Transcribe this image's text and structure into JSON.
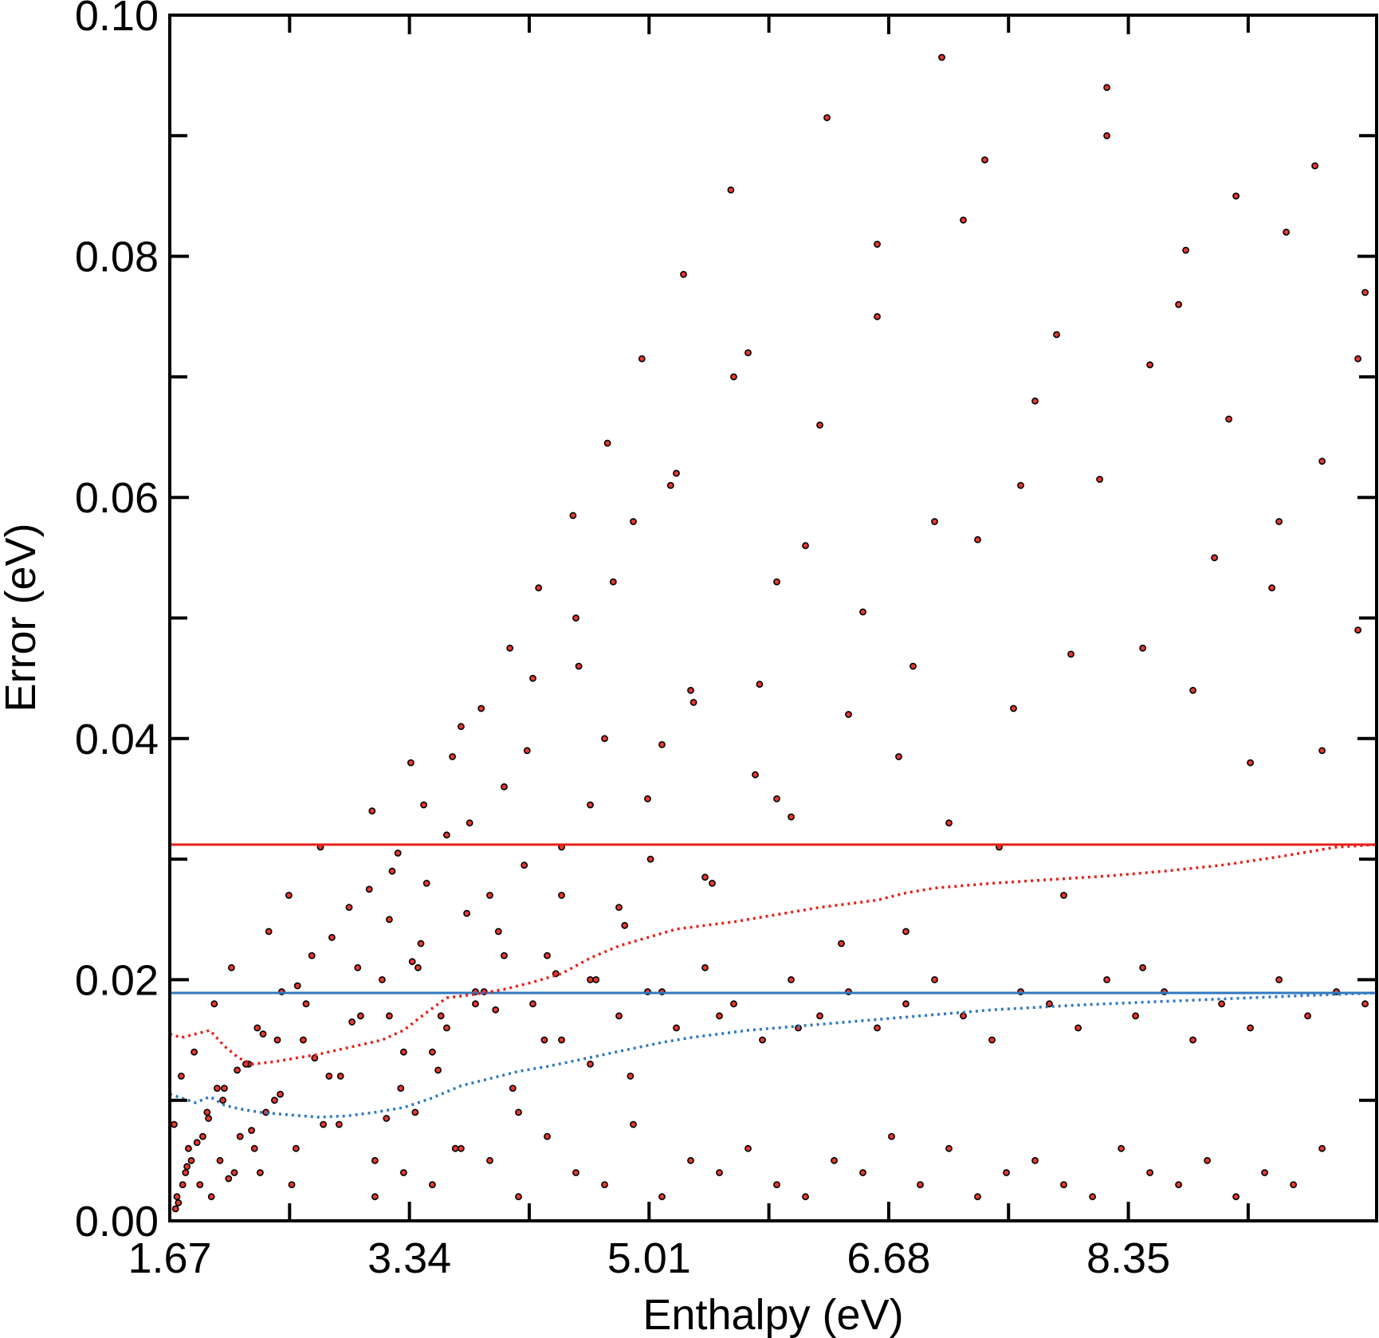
{
  "chart_data": {
    "type": "scatter",
    "title": "",
    "xlabel": "Enthalpy (eV)",
    "ylabel": "Error (eV)",
    "xlim": [
      1.67,
      10.08
    ],
    "ylim": [
      0.0,
      0.1
    ],
    "x_ticks": [
      1.67,
      3.34,
      5.01,
      6.68,
      8.35
    ],
    "x_tick_labels": [
      "1.67",
      "3.34",
      "5.01",
      "6.68",
      "8.35"
    ],
    "y_ticks": [
      0.0,
      0.02,
      0.04,
      0.06,
      0.08,
      0.1
    ],
    "y_tick_labels": [
      "0.00",
      "0.02",
      "0.04",
      "0.06",
      "0.08",
      "0.10"
    ],
    "grid": false,
    "legend": "none",
    "colors": {
      "points_fill": "#e8382e",
      "points_edge": "#000000",
      "red_line": "#e8201a",
      "blue_line": "#2f78c0",
      "axes": "#000000"
    },
    "scatter_points": {
      "x": [
        1.72,
        1.78,
        1.7,
        1.75,
        1.8,
        1.84,
        1.88,
        1.93,
        1.98,
        2.02,
        2.05,
        2.1,
        2.16,
        2.22,
        2.28,
        2.3,
        2.36,
        2.4,
        2.45,
        2.5,
        2.55,
        2.6,
        2.66,
        2.72,
        2.78,
        2.85,
        2.92,
        3.0,
        3.08,
        3.15,
        3.22,
        3.28,
        3.35,
        3.42,
        3.5,
        3.6,
        3.7,
        3.8,
        3.9,
        4.0,
        4.1,
        4.2,
        4.3,
        4.4,
        4.5,
        4.6,
        4.7,
        4.8,
        4.9,
        5.0,
        5.1,
        5.2,
        5.3,
        5.45,
        5.6,
        5.75,
        5.9,
        6.05,
        6.2,
        6.4,
        6.6,
        6.8,
        7.0,
        7.2,
        7.45,
        7.7,
        7.95,
        8.2,
        8.45,
        8.7,
        8.95,
        9.2,
        9.45,
        9.7,
        9.95,
        1.71,
        1.76,
        1.82,
        1.9,
        1.96,
        2.04,
        2.12,
        2.2,
        2.26,
        2.34,
        2.42,
        2.52,
        2.62,
        2.74,
        2.86,
        2.98,
        3.1,
        3.2,
        3.3,
        3.38,
        3.46,
        3.56,
        3.66,
        3.76,
        3.86,
        3.96,
        4.06,
        4.16,
        4.28,
        4.4,
        4.52,
        4.64,
        4.76,
        4.88,
        5.02,
        5.16,
        5.32,
        5.5,
        5.7,
        5.9,
        6.1,
        6.35,
        6.6,
        6.85,
        7.1,
        7.35,
        7.6,
        7.9,
        8.2,
        8.5,
        8.8,
        9.1,
        9.4,
        9.7,
        10.0,
        1.73,
        1.79,
        1.86,
        1.94,
        2.0,
        2.08,
        2.14,
        2.24,
        2.32,
        2.44,
        2.56,
        2.68,
        2.8,
        2.94,
        3.06,
        3.18,
        3.26,
        3.36,
        3.44,
        3.54,
        3.64,
        3.74,
        3.84,
        3.94,
        4.04,
        4.14,
        4.24,
        4.36,
        4.48,
        4.6,
        4.72,
        4.84,
        4.96,
        5.1,
        5.25,
        5.4,
        5.58,
        5.78,
        6.0,
        6.25,
        6.5,
        6.75,
        7.05,
        7.3,
        7.55,
        7.85,
        8.15,
        8.45,
        8.75,
        9.05,
        9.35,
        9.65,
        9.95,
        3.1,
        3.3,
        3.5,
        3.7,
        3.9,
        4.1,
        4.3,
        4.5,
        4.7,
        4.9,
        5.1,
        5.3,
        5.5,
        5.7,
        5.9,
        6.1,
        6.3,
        6.5,
        6.7,
        6.9,
        7.1,
        7.3,
        7.5,
        7.7,
        7.9,
        8.1,
        8.3,
        8.5,
        8.7,
        8.9,
        9.1,
        9.3,
        9.5,
        9.7,
        3.2,
        3.4,
        3.6,
        3.8,
        4.0,
        4.2,
        4.4,
        4.6,
        4.8,
        5.0,
        5.2,
        5.4,
        5.6,
        5.8,
        6.0,
        6.2,
        6.4,
        6.6,
        6.8,
        7.0,
        7.2,
        7.4,
        7.6,
        7.8,
        8.0,
        8.2,
        8.4,
        8.6,
        8.8,
        9.0,
        9.2,
        9.4,
        9.6,
        9.8,
        10.0
      ],
      "y": [
        0.002,
        0.004,
        0.008,
        0.012,
        0.006,
        0.014,
        0.003,
        0.009,
        0.018,
        0.005,
        0.011,
        0.021,
        0.007,
        0.013,
        0.016,
        0.004,
        0.024,
        0.01,
        0.019,
        0.027,
        0.006,
        0.015,
        0.022,
        0.031,
        0.012,
        0.008,
        0.026,
        0.017,
        0.034,
        0.02,
        0.029,
        0.011,
        0.038,
        0.023,
        0.014,
        0.032,
        0.041,
        0.018,
        0.027,
        0.036,
        0.009,
        0.045,
        0.022,
        0.031,
        0.05,
        0.013,
        0.04,
        0.026,
        0.058,
        0.035,
        0.019,
        0.062,
        0.044,
        0.028,
        0.07,
        0.037,
        0.053,
        0.016,
        0.066,
        0.042,
        0.075,
        0.024,
        0.058,
        0.083,
        0.031,
        0.068,
        0.047,
        0.09,
        0.021,
        0.076,
        0.055,
        0.038,
        0.082,
        0.063,
        0.049,
        0.001,
        0.003,
        0.005,
        0.007,
        0.002,
        0.01,
        0.004,
        0.013,
        0.006,
        0.009,
        0.015,
        0.003,
        0.018,
        0.008,
        0.012,
        0.021,
        0.005,
        0.025,
        0.014,
        0.009,
        0.028,
        0.017,
        0.006,
        0.033,
        0.019,
        0.024,
        0.011,
        0.039,
        0.015,
        0.027,
        0.046,
        0.02,
        0.053,
        0.012,
        0.03,
        0.061,
        0.043,
        0.017,
        0.072,
        0.035,
        0.056,
        0.023,
        0.081,
        0.046,
        0.033,
        0.088,
        0.061,
        0.027,
        0.094,
        0.071,
        0.044,
        0.085,
        0.058,
        0.039,
        0.077,
        0.0015,
        0.0045,
        0.0065,
        0.0085,
        0.011,
        0.0035,
        0.0125,
        0.0075,
        0.0155,
        0.0105,
        0.0195,
        0.0135,
        0.0235,
        0.0165,
        0.0275,
        0.0085,
        0.0305,
        0.0215,
        0.0345,
        0.0125,
        0.0385,
        0.0255,
        0.0425,
        0.0175,
        0.0475,
        0.0295,
        0.0525,
        0.0205,
        0.0585,
        0.0345,
        0.0645,
        0.0245,
        0.0715,
        0.0395,
        0.0785,
        0.0285,
        0.0855,
        0.0445,
        0.0335,
        0.0915,
        0.0505,
        0.0385,
        0.0965,
        0.0565,
        0.0425,
        0.0735,
        0.0615,
        0.0475,
        0.0805,
        0.0665,
        0.0525,
        0.0875,
        0.0715,
        0.002,
        0.004,
        0.003,
        0.006,
        0.005,
        0.002,
        0.007,
        0.004,
        0.003,
        0.008,
        0.002,
        0.005,
        0.004,
        0.006,
        0.003,
        0.002,
        0.005,
        0.004,
        0.007,
        0.003,
        0.006,
        0.002,
        0.004,
        0.005,
        0.003,
        0.002,
        0.006,
        0.004,
        0.003,
        0.005,
        0.002,
        0.004,
        0.003,
        0.006,
        0.017,
        0.021,
        0.016,
        0.019,
        0.022,
        0.018,
        0.015,
        0.02,
        0.017,
        0.019,
        0.016,
        0.021,
        0.018,
        0.015,
        0.02,
        0.017,
        0.019,
        0.016,
        0.018,
        0.02,
        0.017,
        0.015,
        0.019,
        0.018,
        0.016,
        0.02,
        0.017,
        0.019,
        0.015,
        0.018,
        0.016,
        0.02,
        0.017,
        0.019,
        0.018
      ]
    },
    "series": [
      {
        "style": "solid",
        "color": "#e8201a",
        "x": [
          1.67,
          10.08
        ],
        "y": [
          0.0312,
          0.0312
        ]
      },
      {
        "style": "solid",
        "color": "#2f78c0",
        "x": [
          1.67,
          10.08
        ],
        "y": [
          0.0189,
          0.0189
        ]
      },
      {
        "style": "dotted",
        "color": "#e8201a",
        "x": [
          1.67,
          1.75,
          1.85,
          1.95,
          2.05,
          2.15,
          2.25,
          2.4,
          2.55,
          2.7,
          2.85,
          3.0,
          3.15,
          3.3,
          3.45,
          3.6,
          3.8,
          4.0,
          4.2,
          4.4,
          4.6,
          4.8,
          5.0,
          5.2,
          5.4,
          5.6,
          5.8,
          6.0,
          6.2,
          6.4,
          6.6,
          6.8,
          7.0,
          7.4,
          7.8,
          8.2,
          8.6,
          9.0,
          9.4,
          9.8,
          10.08
        ],
        "y": [
          0.0155,
          0.0152,
          0.0155,
          0.0158,
          0.0145,
          0.0135,
          0.013,
          0.0132,
          0.0135,
          0.0138,
          0.0142,
          0.0146,
          0.015,
          0.0158,
          0.0172,
          0.0185,
          0.0188,
          0.0192,
          0.0198,
          0.0205,
          0.0218,
          0.0228,
          0.0235,
          0.0242,
          0.0245,
          0.0248,
          0.0252,
          0.0256,
          0.026,
          0.0263,
          0.0266,
          0.0272,
          0.0276,
          0.028,
          0.0283,
          0.0286,
          0.029,
          0.0295,
          0.0302,
          0.031,
          0.0312
        ]
      },
      {
        "style": "dotted",
        "color": "#2f78c0",
        "x": [
          1.67,
          1.75,
          1.85,
          1.95,
          2.05,
          2.15,
          2.3,
          2.5,
          2.7,
          2.9,
          3.1,
          3.3,
          3.5,
          3.7,
          3.9,
          4.1,
          4.3,
          4.5,
          4.7,
          4.9,
          5.1,
          5.3,
          5.5,
          5.7,
          5.9,
          6.1,
          6.3,
          6.5,
          6.7,
          6.9,
          7.1,
          7.4,
          7.7,
          8.0,
          8.4,
          8.8,
          9.2,
          9.6,
          10.08
        ],
        "y": [
          0.0105,
          0.0102,
          0.0098,
          0.0103,
          0.0096,
          0.0093,
          0.009,
          0.0088,
          0.0086,
          0.0087,
          0.009,
          0.0094,
          0.0102,
          0.0112,
          0.0118,
          0.0124,
          0.0128,
          0.0133,
          0.0138,
          0.0143,
          0.0148,
          0.0152,
          0.0155,
          0.0158,
          0.016,
          0.0162,
          0.0164,
          0.0166,
          0.0168,
          0.017,
          0.0172,
          0.0175,
          0.0177,
          0.0179,
          0.0181,
          0.0183,
          0.0185,
          0.0187,
          0.0189
        ]
      }
    ]
  }
}
